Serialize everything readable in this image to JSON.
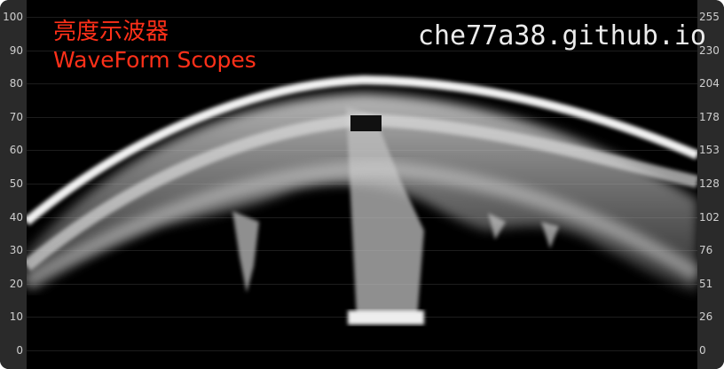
{
  "title": "亮度示波器",
  "subtitle": "WaveForm Scopes",
  "watermark": "che77a38.github.io",
  "scale_left": [
    "100",
    "90",
    "80",
    "70",
    "60",
    "50",
    "40",
    "30",
    "20",
    "10",
    "0"
  ],
  "scale_right": [
    "255",
    "230",
    "204",
    "178",
    "153",
    "128",
    "102",
    "76",
    "51",
    "26",
    "0"
  ],
  "colors": {
    "title": "#ff3019",
    "trace": "#ffffff",
    "background": "#000000",
    "rail": "#2a2a2a"
  }
}
